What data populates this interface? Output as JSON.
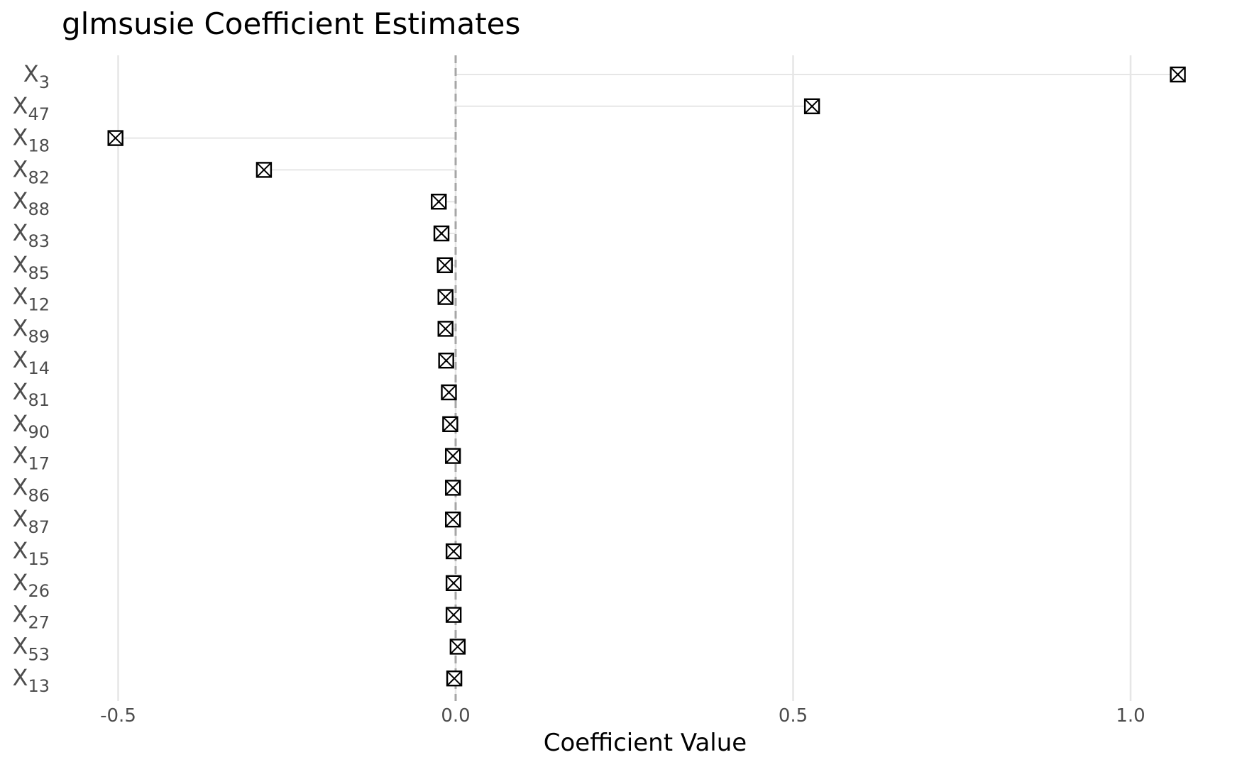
{
  "chart_data": {
    "type": "scatter",
    "title": "glmsusie Coefficient Estimates",
    "xlabel": "Coefficient Value",
    "ylabel": "",
    "xlim": [
      -0.5,
      1.0
    ],
    "xticks": [
      -0.5,
      0.0,
      0.5,
      1.0
    ],
    "xtick_labels": [
      "-0.5",
      "0.0",
      "0.5",
      "1.0"
    ],
    "reference_line": {
      "x": 0.0,
      "style": "dashed",
      "color": "#a6a6a6"
    },
    "grid": {
      "major_vertical": true,
      "horizontal": false,
      "color": "#e6e6e6"
    },
    "segment_color": "#e6e6e6",
    "marker": {
      "shape": "square-cross",
      "color": "#000000"
    },
    "legend": "none",
    "points": [
      {
        "var": "X",
        "sub": "3",
        "value": 1.07
      },
      {
        "var": "X",
        "sub": "47",
        "value": 0.528
      },
      {
        "var": "X",
        "sub": "18",
        "value": -0.504
      },
      {
        "var": "X",
        "sub": "82",
        "value": -0.284
      },
      {
        "var": "X",
        "sub": "88",
        "value": -0.025
      },
      {
        "var": "X",
        "sub": "83",
        "value": -0.021
      },
      {
        "var": "X",
        "sub": "85",
        "value": -0.016
      },
      {
        "var": "X",
        "sub": "12",
        "value": -0.015
      },
      {
        "var": "X",
        "sub": "89",
        "value": -0.015
      },
      {
        "var": "X",
        "sub": "14",
        "value": -0.014
      },
      {
        "var": "X",
        "sub": "81",
        "value": -0.01
      },
      {
        "var": "X",
        "sub": "90",
        "value": -0.008
      },
      {
        "var": "X",
        "sub": "17",
        "value": -0.004
      },
      {
        "var": "X",
        "sub": "86",
        "value": -0.004
      },
      {
        "var": "X",
        "sub": "87",
        "value": -0.004
      },
      {
        "var": "X",
        "sub": "15",
        "value": -0.003
      },
      {
        "var": "X",
        "sub": "26",
        "value": -0.003
      },
      {
        "var": "X",
        "sub": "27",
        "value": -0.003
      },
      {
        "var": "X",
        "sub": "53",
        "value": 0.003
      },
      {
        "var": "X",
        "sub": "13",
        "value": -0.002
      }
    ]
  }
}
